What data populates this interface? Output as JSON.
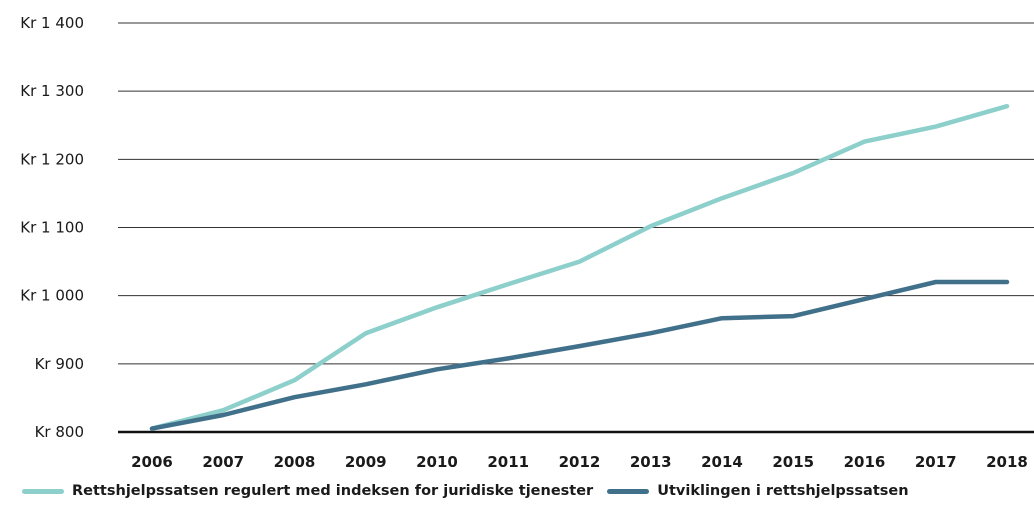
{
  "chart_data": {
    "type": "line",
    "x": [
      "2006",
      "2007",
      "2008",
      "2009",
      "2010",
      "2011",
      "2012",
      "2013",
      "2014",
      "2015",
      "2016",
      "2017",
      "2018"
    ],
    "y_ticks": [
      "Kr 800",
      "Kr 900",
      "Kr 1 000",
      "Kr 1 100",
      "Kr 1 200",
      "Kr 1 300",
      "Kr 1 400"
    ],
    "ylim": [
      800,
      1400
    ],
    "grid": "horizontal",
    "legend_position": "bottom-left",
    "series": [
      {
        "name": "Rettshjelpssatsen regulert med indeksen for juridiske tjenester",
        "color": "#8ccfcb",
        "values": [
          805,
          832,
          876,
          945,
          983,
          1017,
          1050,
          1102,
          1143,
          1180,
          1226,
          1248,
          1278
        ]
      },
      {
        "name": "Utviklingen i rettshjelpssatsen",
        "color": "#41708a",
        "values": [
          805,
          825,
          851,
          870,
          892,
          908,
          926,
          945,
          967,
          970,
          995,
          1020,
          1020
        ]
      }
    ]
  }
}
